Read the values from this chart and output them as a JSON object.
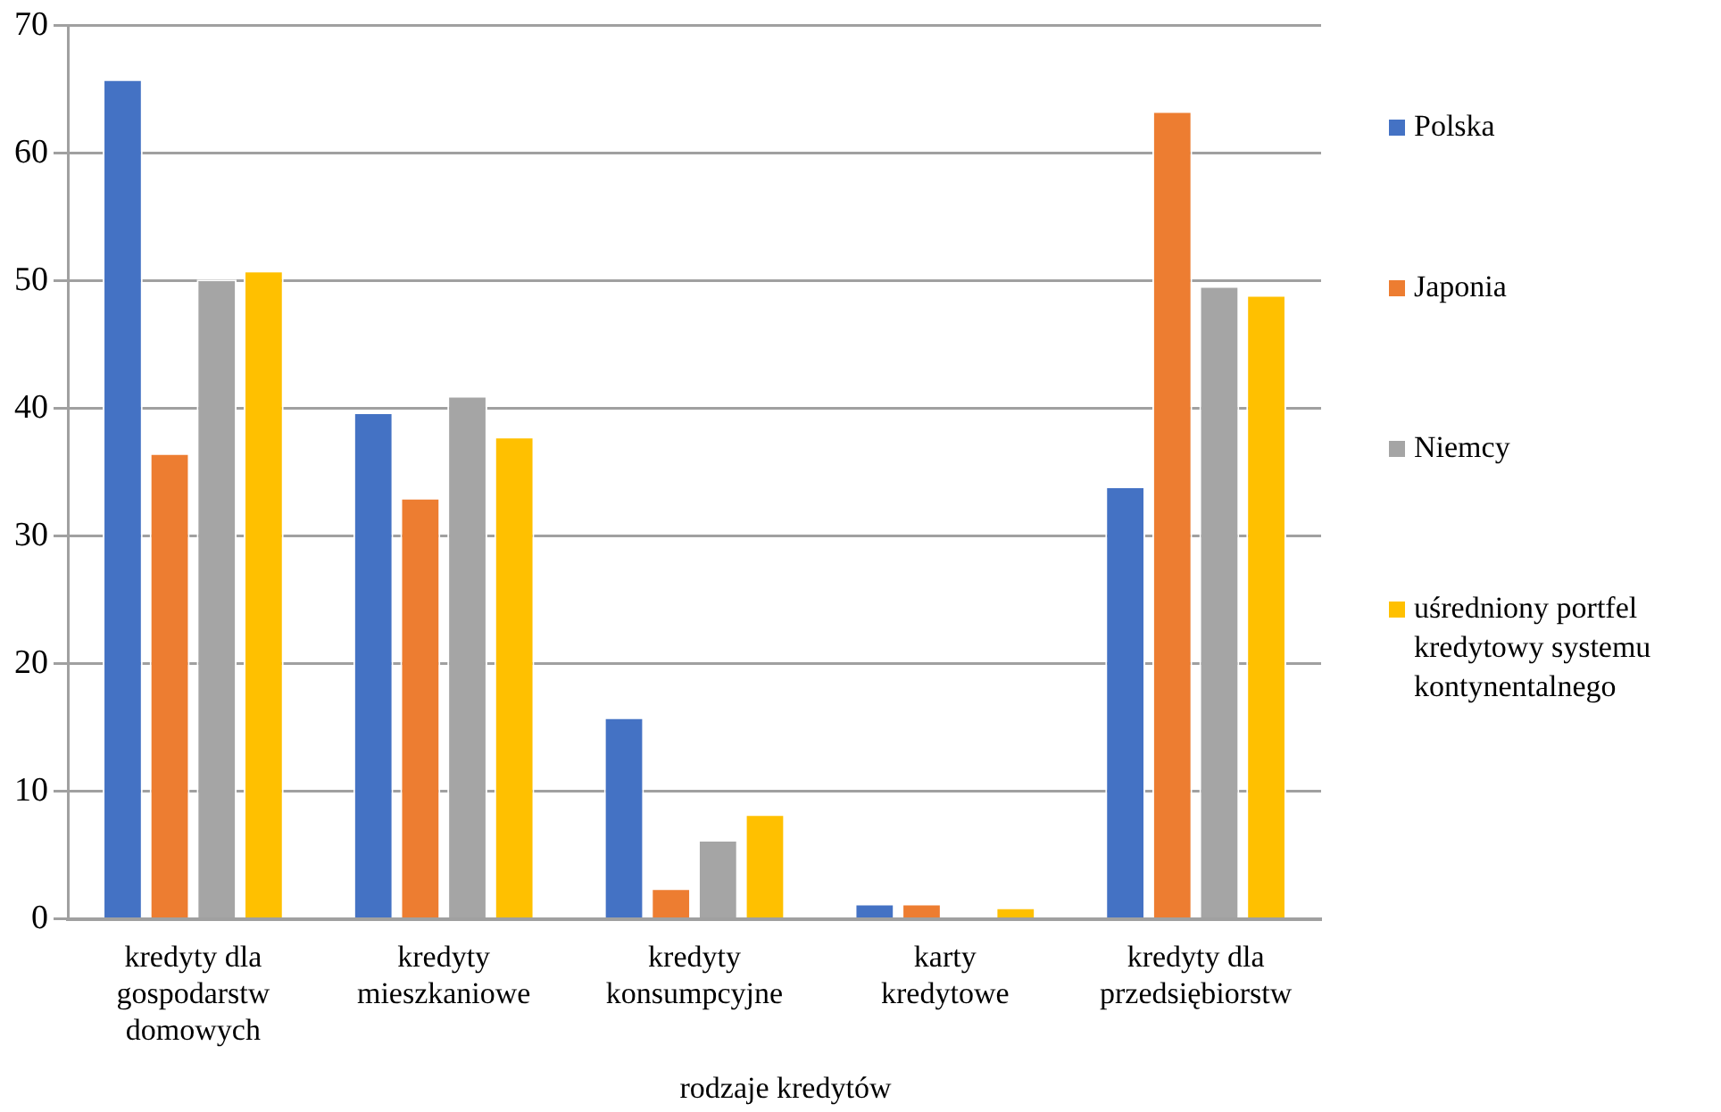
{
  "chart_data": {
    "type": "bar",
    "xlabel": "rodzaje kredytów",
    "categories": [
      "kredyty dla gospodarstw domowych",
      "kredyty mieszkaniowe",
      "kredyty konsumpcyjne",
      "karty kredytowe",
      "kredyty dla przedsiębiorstw"
    ],
    "series": [
      {
        "name": "Polska",
        "color": "#4472c4",
        "values": [
          65.8,
          39.7,
          15.8,
          1.2,
          33.9
        ]
      },
      {
        "name": "Japonia",
        "color": "#ed7d31",
        "values": [
          36.5,
          33,
          2.4,
          1.2,
          63.3
        ]
      },
      {
        "name": "Niemcy",
        "color": "#a5a5a5",
        "values": [
          50.1,
          41,
          6.2,
          0,
          49.6
        ]
      },
      {
        "name": "uśredniony portfel kredytowy systemu kontynentalnego",
        "color": "#ffc000",
        "values": [
          50.8,
          37.8,
          8.2,
          0.9,
          48.9
        ]
      }
    ],
    "ylim": [
      0,
      70
    ],
    "yticks": [
      0,
      10,
      20,
      30,
      40,
      50,
      60,
      70
    ],
    "grid": "y",
    "legend": "right"
  }
}
